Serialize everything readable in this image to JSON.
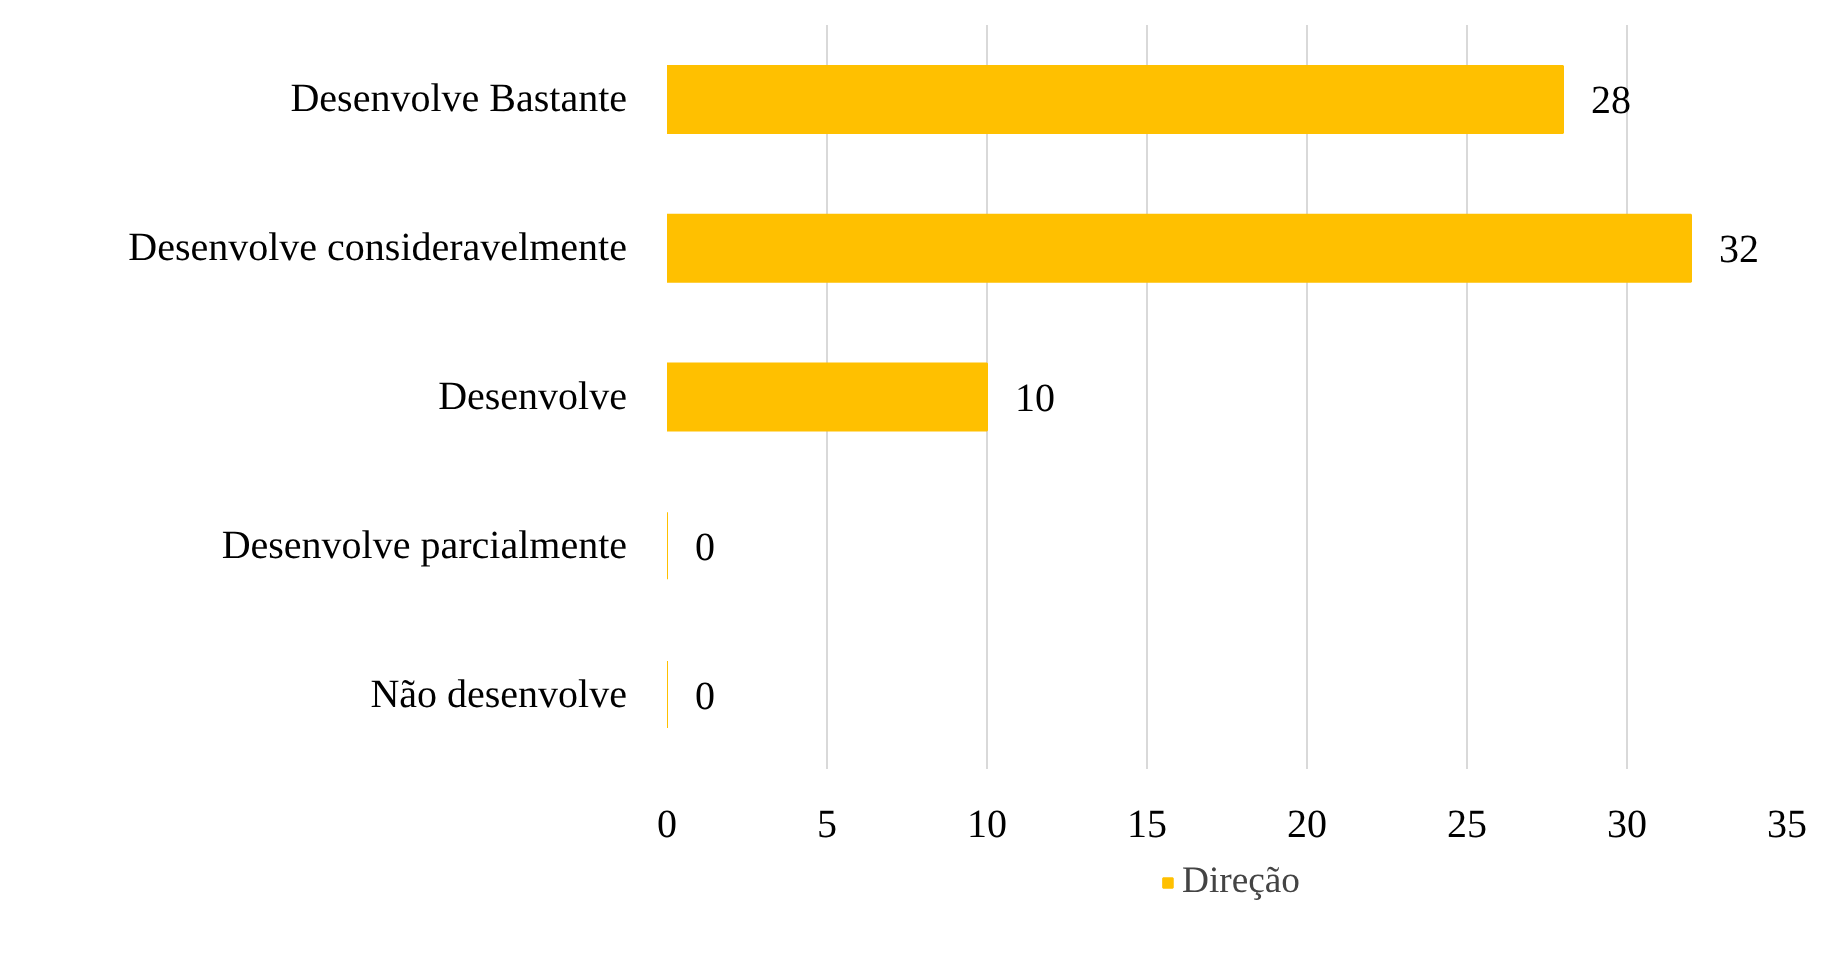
{
  "chart_data": {
    "type": "bar",
    "orientation": "horizontal",
    "categories": [
      "Desenvolve Bastante",
      "Desenvolve consideravelmente",
      "Desenvolve",
      "Desenvolve parcialmente",
      "Não desenvolve"
    ],
    "series": [
      {
        "name": "Direção",
        "color": "#ffc000",
        "values": [
          28,
          32,
          10,
          0,
          0
        ]
      }
    ],
    "xlim": [
      0,
      35
    ],
    "xticks": [
      0,
      5,
      10,
      15,
      20,
      25,
      30,
      35
    ],
    "grid": "x",
    "legend": "bottom",
    "data_labels": true
  }
}
